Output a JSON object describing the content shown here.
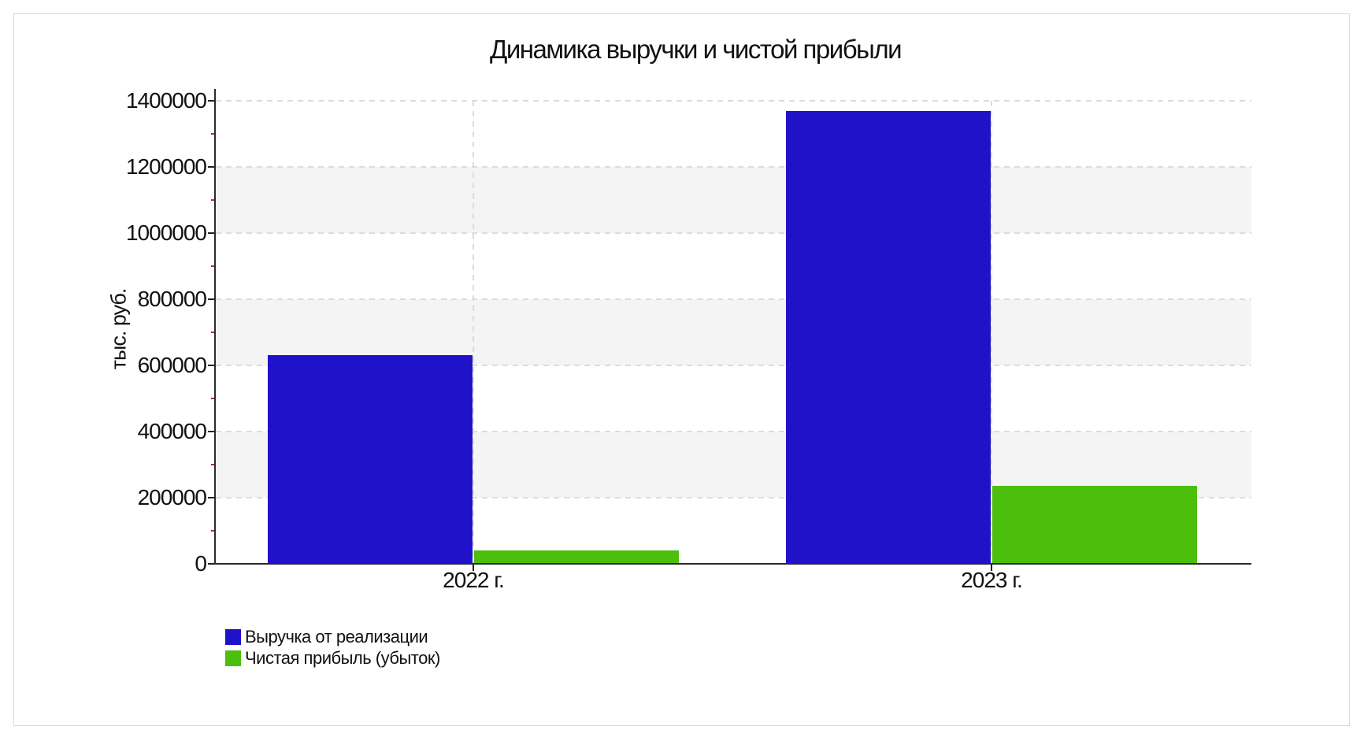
{
  "chart_data": {
    "type": "bar",
    "title": "Динамика выручки и чистой прибыли",
    "ylabel": "тыс. руб.",
    "xlabel": "",
    "categories": [
      "2022 г.",
      "2023 г."
    ],
    "series": [
      {
        "name": "Выручка от реализации",
        "color": "#2012C8",
        "values": [
          630000,
          1370000
        ]
      },
      {
        "name": "Чистая прибыль (убыток)",
        "color": "#4CBE0C",
        "values": [
          40000,
          235000
        ]
      }
    ],
    "ylim": [
      0,
      1400000
    ],
    "ytick_step": 200000,
    "yticks": [
      0,
      200000,
      400000,
      600000,
      800000,
      1000000,
      1200000,
      1400000
    ],
    "minor_tick_step": 100000,
    "grid": "dashed-horizontal-and-category-vertical",
    "background_bands": "alternating-light-gray",
    "band_color": "#f4f4f4",
    "gridline_color": "#dcdcdc",
    "axis_color": "#2b2b2b",
    "minor_tick_color": "#cc2222",
    "legend_position": "bottom-left"
  }
}
